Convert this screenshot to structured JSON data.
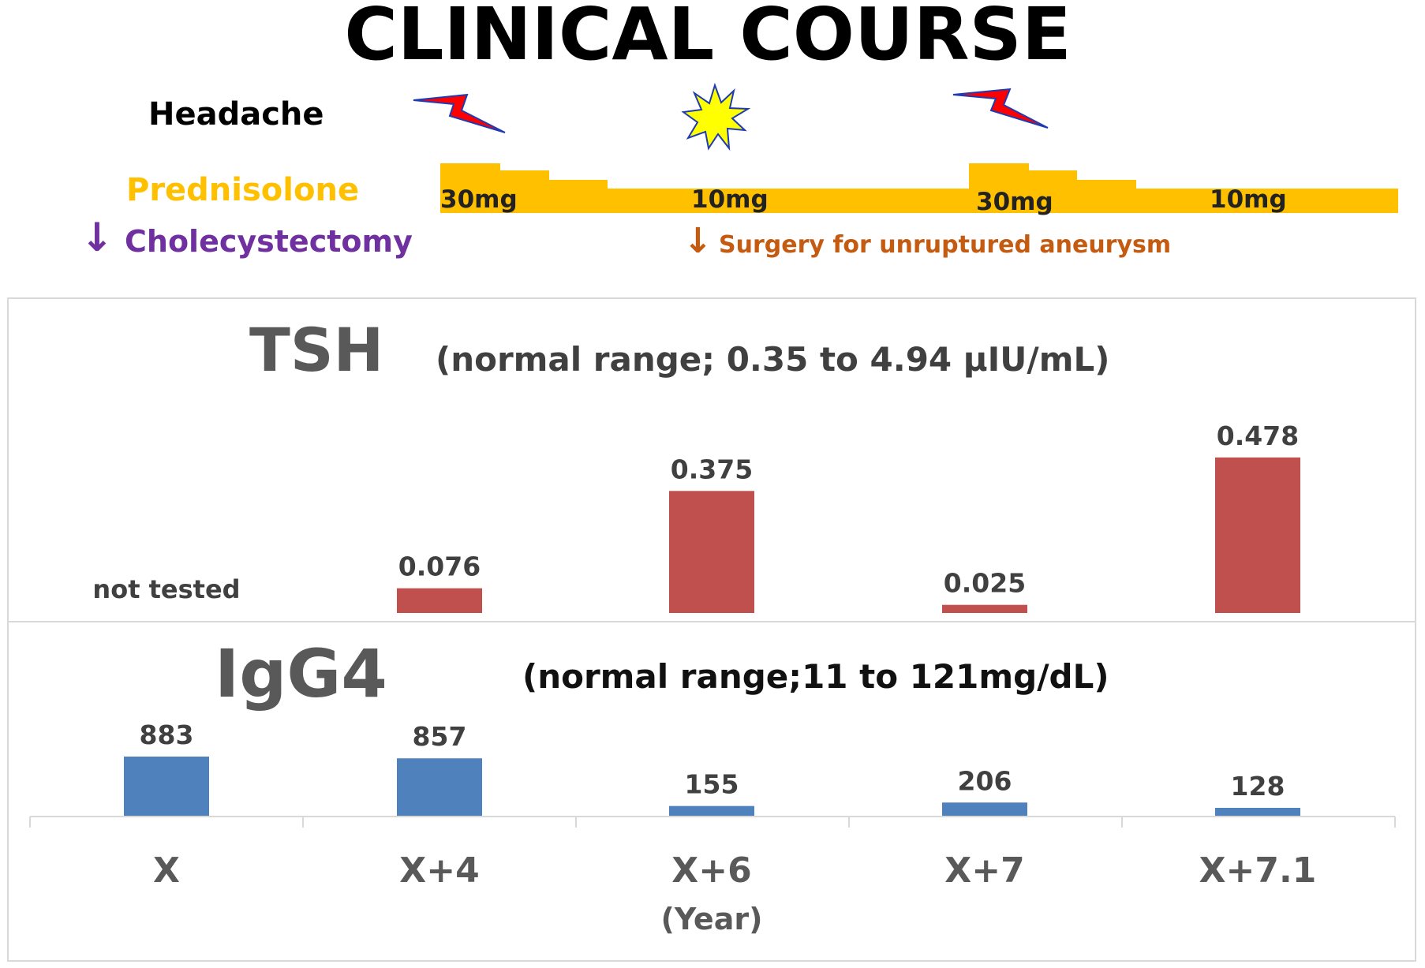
{
  "title": "CLINICAL COURSE",
  "headache": {
    "label": "Headache"
  },
  "prednisolone": {
    "label": "Prednisolone",
    "doses": [
      "30mg",
      "10mg",
      "30mg",
      "10mg"
    ],
    "color": "#FFC000"
  },
  "events": {
    "cholecystectomy": "Cholecystectomy",
    "surgery": "Surgery for unruptured aneurysm",
    "arrow": "↓"
  },
  "colors": {
    "tsh_bar": "#C0504D",
    "igg4_bar": "#4F81BD",
    "cholecystectomy": "#7030A0",
    "surgery": "#C55A11",
    "panel_title": "#595959"
  },
  "chart_data": [
    {
      "type": "bar",
      "title": "TSH",
      "subtitle": "(normal range; 0.35 to 4.94 µIU/mL)",
      "categories": [
        "X",
        "X+4",
        "X+6",
        "X+7",
        "X+7.1"
      ],
      "values": [
        null,
        0.076,
        0.375,
        0.025,
        0.478
      ],
      "value_labels": [
        "not tested",
        "0.076",
        "0.375",
        "0.025",
        "0.478"
      ],
      "ylim": [
        0,
        0.48
      ]
    },
    {
      "type": "bar",
      "title": "IgG4",
      "subtitle": "(normal range;11 to 121mg/dL)",
      "categories": [
        "X",
        "X+4",
        "X+6",
        "X+7",
        "X+7.1"
      ],
      "values": [
        883,
        857,
        155,
        206,
        128
      ],
      "value_labels": [
        "883",
        "857",
        "155",
        "206",
        "128"
      ],
      "xlabel": "(Year)",
      "ylim": [
        0,
        883
      ]
    }
  ]
}
